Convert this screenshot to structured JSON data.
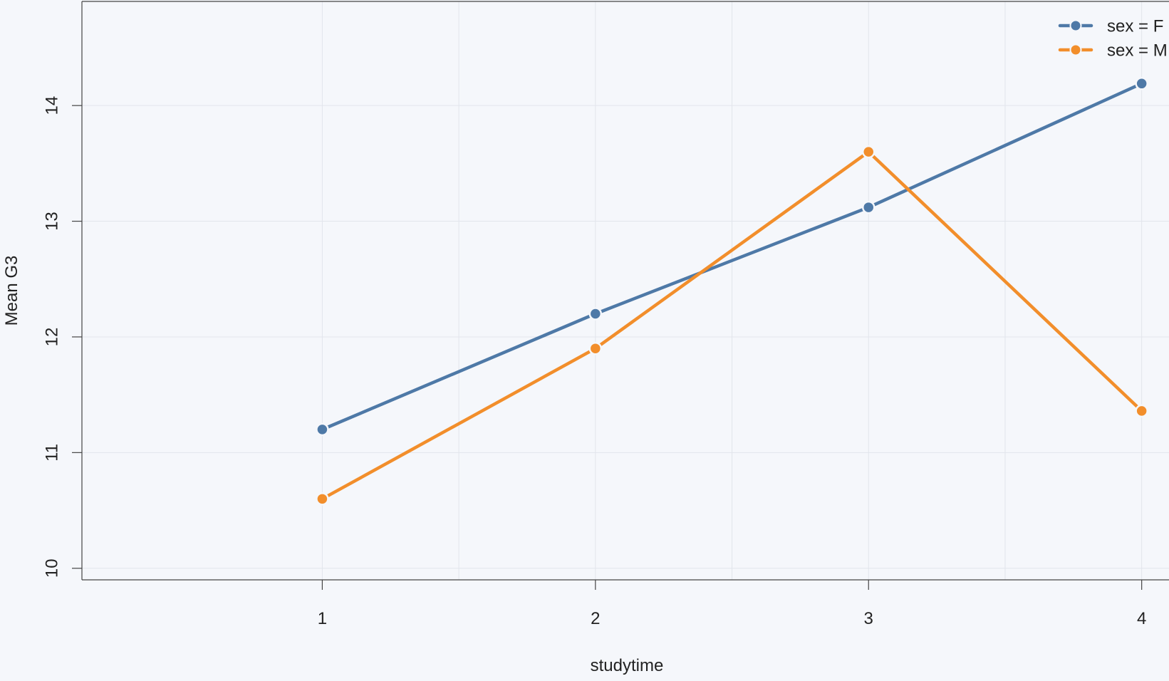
{
  "chart_data": {
    "type": "line",
    "title": "",
    "xlabel": "studytime",
    "ylabel": "Mean G3",
    "categories": [
      "1",
      "2",
      "3",
      "4"
    ],
    "x": [
      1,
      2,
      3,
      4
    ],
    "xlim": [
      0.12,
      4.1
    ],
    "ylim": [
      9.9,
      14.9
    ],
    "yticks": [
      10,
      11,
      12,
      13,
      14
    ],
    "grid": true,
    "legend_position": "top-right",
    "series": [
      {
        "name": "sex = F",
        "values": [
          11.2,
          12.2,
          13.12,
          14.19
        ],
        "color": "#4e79a7"
      },
      {
        "name": "sex = M",
        "values": [
          10.6,
          11.9,
          13.6,
          11.36
        ],
        "color": "#f28e2b"
      }
    ]
  }
}
